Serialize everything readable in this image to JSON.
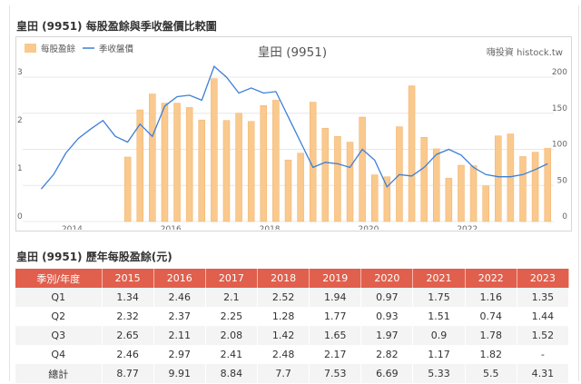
{
  "page": {
    "chart_title": "皇田 (9951) 每股盈餘與季收盤價比較圖",
    "table_title": "皇田 (9951) 歷年每股盈餘(元)"
  },
  "colors": {
    "bar": "#f9c98e",
    "line": "#3c7fd6",
    "header": "#e0604d",
    "grid": "#e8e8e8"
  },
  "chart_data": {
    "type": "bar+line",
    "title": "皇田 (9951)",
    "source": "嗨投資 histock.tw",
    "legend": [
      "每股盈餘",
      "季收盤價"
    ],
    "x_ticks": [
      "2014",
      "2016",
      "2018",
      "2020",
      "2022"
    ],
    "y_left": {
      "min": 0,
      "max": 3,
      "ticks": [
        "0",
        "1",
        "2",
        "3"
      ]
    },
    "y_right": {
      "min": 0,
      "max": 200,
      "ticks": [
        "0",
        "50",
        "100",
        "150",
        "200"
      ]
    },
    "eps_quarters": [
      "2015Q1",
      "2015Q2",
      "2015Q3",
      "2015Q4",
      "2016Q1",
      "2016Q2",
      "2016Q3",
      "2016Q4",
      "2017Q1",
      "2017Q2",
      "2017Q3",
      "2017Q4",
      "2018Q1",
      "2018Q2",
      "2018Q3",
      "2018Q4",
      "2019Q1",
      "2019Q2",
      "2019Q3",
      "2019Q4",
      "2020Q1",
      "2020Q2",
      "2020Q3",
      "2020Q4",
      "2021Q1",
      "2021Q2",
      "2021Q3",
      "2021Q4",
      "2022Q1",
      "2022Q2",
      "2022Q3",
      "2022Q4",
      "2023Q1",
      "2023Q2",
      "2023Q3"
    ],
    "eps": [
      1.34,
      2.32,
      2.65,
      2.46,
      2.46,
      2.37,
      2.11,
      2.97,
      2.1,
      2.25,
      2.08,
      2.41,
      2.52,
      1.28,
      1.42,
      2.48,
      1.94,
      1.77,
      1.65,
      2.17,
      0.97,
      0.93,
      1.97,
      2.82,
      1.75,
      1.51,
      0.9,
      1.17,
      1.16,
      0.74,
      1.78,
      1.82,
      1.35,
      1.44,
      1.52
    ],
    "price_quarters": [
      "2013Q2",
      "2013Q3",
      "2013Q4",
      "2014Q1",
      "2014Q2",
      "2014Q3",
      "2014Q4",
      "2015Q1",
      "2015Q2",
      "2015Q3",
      "2015Q4",
      "2016Q1",
      "2016Q2",
      "2016Q3",
      "2016Q4",
      "2017Q1",
      "2017Q2",
      "2017Q3",
      "2017Q4",
      "2018Q1",
      "2018Q2",
      "2018Q3",
      "2018Q4",
      "2019Q1",
      "2019Q2",
      "2019Q3",
      "2019Q4",
      "2020Q1",
      "2020Q2",
      "2020Q3",
      "2020Q4",
      "2021Q1",
      "2021Q2",
      "2021Q3",
      "2021Q4",
      "2022Q1",
      "2022Q2",
      "2022Q3",
      "2022Q4",
      "2023Q1",
      "2023Q2",
      "2023Q3"
    ],
    "price": [
      45,
      65,
      95,
      115,
      128,
      140,
      118,
      110,
      135,
      118,
      160,
      173,
      175,
      168,
      215,
      200,
      178,
      185,
      178,
      180,
      145,
      110,
      75,
      82,
      80,
      75,
      100,
      85,
      48,
      65,
      63,
      75,
      93,
      100,
      92,
      75,
      65,
      62,
      62,
      65,
      72,
      80
    ]
  },
  "table": {
    "headers": [
      "季別/年度",
      "2015",
      "2016",
      "2017",
      "2018",
      "2019",
      "2020",
      "2021",
      "2022",
      "2023"
    ],
    "rows": [
      {
        "label": "Q1",
        "values": [
          "1.34",
          "2.46",
          "2.1",
          "2.52",
          "1.94",
          "0.97",
          "1.75",
          "1.16",
          "1.35"
        ]
      },
      {
        "label": "Q2",
        "values": [
          "2.32",
          "2.37",
          "2.25",
          "1.28",
          "1.77",
          "0.93",
          "1.51",
          "0.74",
          "1.44"
        ]
      },
      {
        "label": "Q3",
        "values": [
          "2.65",
          "2.11",
          "2.08",
          "1.42",
          "1.65",
          "1.97",
          "0.9",
          "1.78",
          "1.52"
        ]
      },
      {
        "label": "Q4",
        "values": [
          "2.46",
          "2.97",
          "2.41",
          "2.48",
          "2.17",
          "2.82",
          "1.17",
          "1.82",
          "-"
        ]
      },
      {
        "label": "總計",
        "values": [
          "8.77",
          "9.91",
          "8.84",
          "7.7",
          "7.53",
          "6.69",
          "5.33",
          "5.5",
          "4.31"
        ]
      }
    ]
  }
}
